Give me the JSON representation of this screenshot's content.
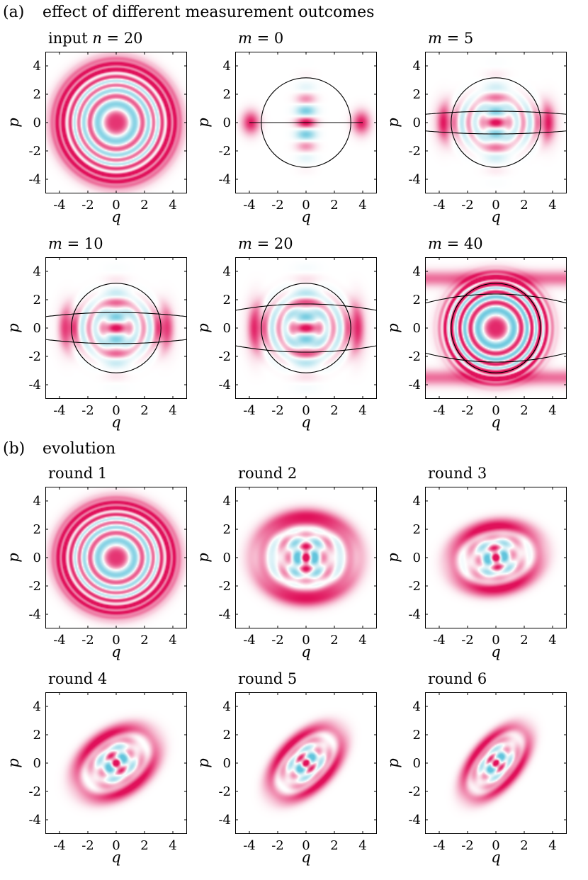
{
  "figure": {
    "section_a": {
      "label": "(a)",
      "title": "effect of different measurement outcomes"
    },
    "section_b": {
      "label": "(b)",
      "title": "evolution"
    }
  },
  "colors": {
    "positive": "#e0105a",
    "negative": "#62c4dc",
    "line": "#000000",
    "background": "#ffffff"
  },
  "chart_data": [
    {
      "type": "heatmap",
      "section": "a",
      "title": "input  n = 20",
      "title_parts": [
        "input  ",
        "n",
        " = ",
        "20"
      ],
      "xlabel": "q",
      "ylabel": "p",
      "xlim": [
        -5,
        5
      ],
      "ylim": [
        -5,
        5
      ],
      "ticks": [
        -4,
        -2,
        0,
        2,
        4
      ],
      "tick_labels": [
        "-4",
        "-2",
        "0",
        "2",
        "4"
      ],
      "pattern": "rings",
      "ring_radius": 4.0,
      "angle_deg": 0,
      "aspect": 1.0,
      "overlay_circle_radius": null,
      "overlay_band_half_width": null
    },
    {
      "type": "heatmap",
      "section": "a",
      "title": "m = 0",
      "title_parts": [
        "",
        "m",
        " = ",
        "0"
      ],
      "xlabel": "q",
      "ylabel": "p",
      "xlim": [
        -5,
        5
      ],
      "ylim": [
        -5,
        5
      ],
      "ticks": [
        -4,
        -2,
        0,
        2,
        4
      ],
      "tick_labels": [
        "-4",
        "-2",
        "0",
        "2",
        "4"
      ],
      "pattern": "measured",
      "ring_radius": 3.9,
      "angle_deg": 0,
      "aspect": 1.0,
      "overlay_circle_radius": 3.16,
      "overlay_band_half_width": 0.0
    },
    {
      "type": "heatmap",
      "section": "a",
      "title": "m = 5",
      "title_parts": [
        "",
        "m",
        " = ",
        "5"
      ],
      "xlabel": "q",
      "ylabel": "p",
      "xlim": [
        -5,
        5
      ],
      "ylim": [
        -5,
        5
      ],
      "ticks": [
        -4,
        -2,
        0,
        2,
        4
      ],
      "tick_labels": [
        "-4",
        "-2",
        "0",
        "2",
        "4"
      ],
      "pattern": "measured",
      "ring_radius": 3.6,
      "angle_deg": 0,
      "aspect": 1.0,
      "overlay_circle_radius": 3.16,
      "overlay_band_half_width": 0.8
    },
    {
      "type": "heatmap",
      "section": "a",
      "title": "m = 10",
      "title_parts": [
        "",
        "m",
        " = ",
        "10"
      ],
      "xlabel": "q",
      "ylabel": "p",
      "xlim": [
        -5,
        5
      ],
      "ylim": [
        -5,
        5
      ],
      "ticks": [
        -4,
        -2,
        0,
        2,
        4
      ],
      "tick_labels": [
        "-4",
        "-2",
        "0",
        "2",
        "4"
      ],
      "pattern": "measured",
      "ring_radius": 3.4,
      "angle_deg": 0,
      "aspect": 1.0,
      "overlay_circle_radius": 3.16,
      "overlay_band_half_width": 1.1
    },
    {
      "type": "heatmap",
      "section": "a",
      "title": "m = 20",
      "title_parts": [
        "",
        "m",
        " = ",
        "20"
      ],
      "xlabel": "q",
      "ylabel": "p",
      "xlim": [
        -5,
        5
      ],
      "ylim": [
        -5,
        5
      ],
      "ticks": [
        -4,
        -2,
        0,
        2,
        4
      ],
      "tick_labels": [
        "-4",
        "-2",
        "0",
        "2",
        "4"
      ],
      "pattern": "measured",
      "ring_radius": 3.5,
      "angle_deg": 0,
      "aspect": 1.0,
      "overlay_circle_radius": 3.16,
      "overlay_band_half_width": 1.7
    },
    {
      "type": "heatmap",
      "section": "a",
      "title": "m = 40",
      "title_parts": [
        "",
        "m",
        " = ",
        "40"
      ],
      "xlabel": "q",
      "ylabel": "p",
      "xlim": [
        -5,
        5
      ],
      "ylim": [
        -5,
        5
      ],
      "ticks": [
        -4,
        -2,
        0,
        2,
        4
      ],
      "tick_labels": [
        "-4",
        "-2",
        "0",
        "2",
        "4"
      ],
      "pattern": "rings_top_bottom",
      "ring_radius": 3.5,
      "angle_deg": 0,
      "aspect": 1.0,
      "overlay_circle_radius": 3.16,
      "overlay_band_half_width": 2.4
    },
    {
      "type": "heatmap",
      "section": "b",
      "title": "round 1",
      "title_parts": [
        "round 1",
        "",
        "",
        ""
      ],
      "xlabel": "q",
      "ylabel": "p",
      "xlim": [
        -5,
        5
      ],
      "ylim": [
        -5,
        5
      ],
      "ticks": [
        -4,
        -2,
        0,
        2,
        4
      ],
      "tick_labels": [
        "-4",
        "-2",
        "0",
        "2",
        "4"
      ],
      "pattern": "rings",
      "ring_radius": 3.9,
      "angle_deg": 0,
      "aspect": 0.95,
      "overlay_circle_radius": null,
      "overlay_band_half_width": null
    },
    {
      "type": "heatmap",
      "section": "b",
      "title": "round 2",
      "title_parts": [
        "round 2",
        "",
        "",
        ""
      ],
      "xlabel": "q",
      "ylabel": "p",
      "xlim": [
        -5,
        5
      ],
      "ylim": [
        -5,
        5
      ],
      "ticks": [
        -4,
        -2,
        0,
        2,
        4
      ],
      "tick_labels": [
        "-4",
        "-2",
        "0",
        "2",
        "4"
      ],
      "pattern": "lobes",
      "ring_radius": 3.6,
      "angle_deg": 0,
      "aspect": 0.8,
      "overlay_circle_radius": null,
      "overlay_band_half_width": null
    },
    {
      "type": "heatmap",
      "section": "b",
      "title": "round 3",
      "title_parts": [
        "round 3",
        "",
        "",
        ""
      ],
      "xlabel": "q",
      "ylabel": "p",
      "xlim": [
        -5,
        5
      ],
      "ylim": [
        -5,
        5
      ],
      "ticks": [
        -4,
        -2,
        0,
        2,
        4
      ],
      "tick_labels": [
        "-4",
        "-2",
        "0",
        "2",
        "4"
      ],
      "pattern": "lobes",
      "ring_radius": 3.2,
      "angle_deg": 10,
      "aspect": 0.7,
      "overlay_circle_radius": null,
      "overlay_band_half_width": null
    },
    {
      "type": "heatmap",
      "section": "b",
      "title": "round 4",
      "title_parts": [
        "round 4",
        "",
        "",
        ""
      ],
      "xlabel": "q",
      "ylabel": "p",
      "xlim": [
        -5,
        5
      ],
      "ylim": [
        -5,
        5
      ],
      "ticks": [
        -4,
        -2,
        0,
        2,
        4
      ],
      "tick_labels": [
        "-4",
        "-2",
        "0",
        "2",
        "4"
      ],
      "pattern": "lobes",
      "ring_radius": 3.1,
      "angle_deg": 35,
      "aspect": 0.65,
      "overlay_circle_radius": null,
      "overlay_band_half_width": null
    },
    {
      "type": "heatmap",
      "section": "b",
      "title": "round 5",
      "title_parts": [
        "round 5",
        "",
        "",
        ""
      ],
      "xlabel": "q",
      "ylabel": "p",
      "xlim": [
        -5,
        5
      ],
      "ylim": [
        -5,
        5
      ],
      "ticks": [
        -4,
        -2,
        0,
        2,
        4
      ],
      "tick_labels": [
        "-4",
        "-2",
        "0",
        "2",
        "4"
      ],
      "pattern": "lobes",
      "ring_radius": 3.1,
      "angle_deg": 45,
      "aspect": 0.55,
      "overlay_circle_radius": null,
      "overlay_band_half_width": null
    },
    {
      "type": "heatmap",
      "section": "b",
      "title": "round 6",
      "title_parts": [
        "round 6",
        "",
        "",
        ""
      ],
      "xlabel": "q",
      "ylabel": "p",
      "xlim": [
        -5,
        5
      ],
      "ylim": [
        -5,
        5
      ],
      "ticks": [
        -4,
        -2,
        0,
        2,
        4
      ],
      "tick_labels": [
        "-4",
        "-2",
        "0",
        "2",
        "4"
      ],
      "pattern": "lobes",
      "ring_radius": 3.0,
      "angle_deg": 50,
      "aspect": 0.5,
      "overlay_circle_radius": null,
      "overlay_band_half_width": null
    }
  ]
}
